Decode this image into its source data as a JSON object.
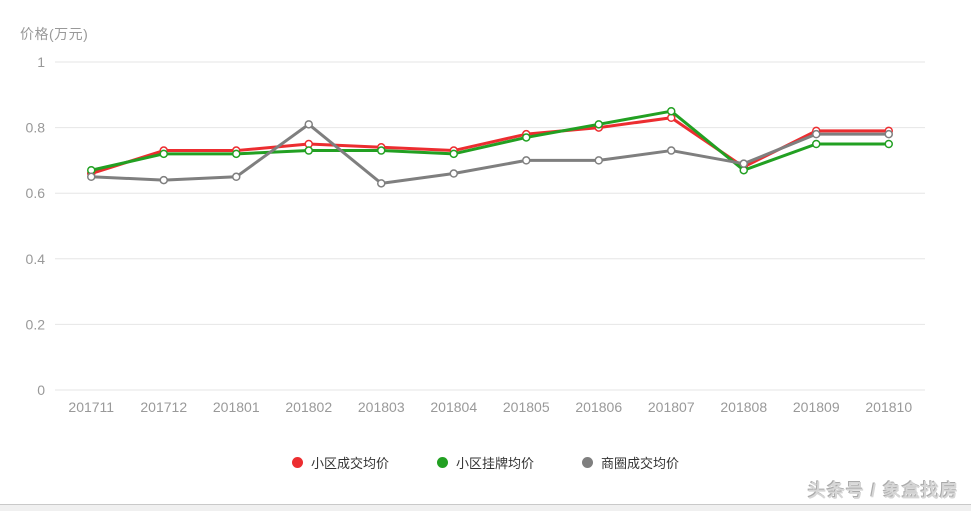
{
  "chart_data": {
    "type": "line",
    "title": "",
    "ylabel": "价格(万元)",
    "xlabel": "",
    "ylim": [
      0,
      1
    ],
    "yticks": [
      0,
      0.2,
      0.4,
      0.6,
      0.8,
      1
    ],
    "ytick_labels": [
      "0",
      "0.2",
      "0.4",
      "0.6",
      "0.8",
      "1"
    ],
    "categories": [
      "201711",
      "201712",
      "201801",
      "201802",
      "201803",
      "201804",
      "201805",
      "201806",
      "201807",
      "201808",
      "201809",
      "201810"
    ],
    "series": [
      {
        "name": "小区成交均价",
        "color": "#ec2d30",
        "values": [
          0.66,
          0.73,
          0.73,
          0.75,
          0.74,
          0.73,
          0.78,
          0.8,
          0.83,
          0.68,
          0.79,
          0.79
        ]
      },
      {
        "name": "小区挂牌均价",
        "color": "#22a022",
        "values": [
          0.67,
          0.72,
          0.72,
          0.73,
          0.73,
          0.72,
          0.77,
          0.81,
          0.85,
          0.67,
          0.75,
          0.75
        ]
      },
      {
        "name": "商圈成交均价",
        "color": "#7f7f7f",
        "values": [
          0.65,
          0.64,
          0.65,
          0.81,
          0.63,
          0.66,
          0.7,
          0.7,
          0.73,
          0.69,
          0.78,
          0.78
        ]
      }
    ],
    "grid": true,
    "legend_position": "bottom",
    "colors": {
      "grid": "#e6e6e6",
      "axis_text": "#999999",
      "legend_text": "#333333",
      "marker_fill": "#ffffff"
    }
  },
  "watermark": {
    "text": "头条号 / 象盒找房"
  }
}
